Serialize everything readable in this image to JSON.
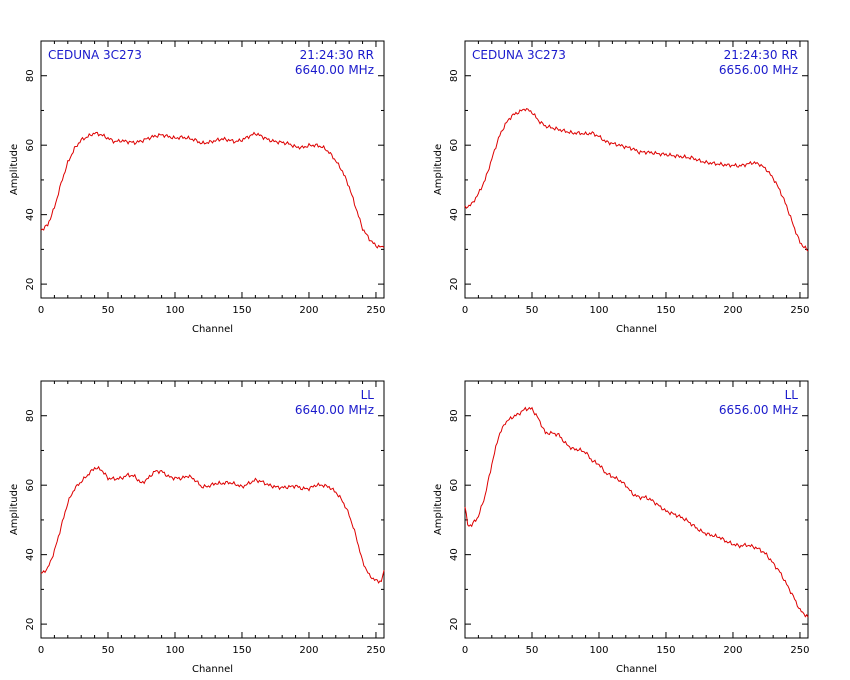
{
  "colors": {
    "trace": "#dd0000",
    "annotation": "#1a1acc",
    "axis": "#000000",
    "background": "#ffffff"
  },
  "chart_data": [
    {
      "type": "line",
      "source": "CEDUNA 3C273",
      "time": "21:24:30",
      "polarization": "RR",
      "frequency": "6640.00 MHz",
      "xlabel": "Channel",
      "ylabel": "Amplitude",
      "xlim": [
        0,
        256
      ],
      "ylim": [
        16,
        90
      ],
      "xticks": [
        0,
        50,
        100,
        150,
        200,
        250
      ],
      "yticks": [
        20,
        40,
        60,
        80
      ],
      "series": [
        {
          "x": [
            0,
            5,
            10,
            15,
            20,
            25,
            30,
            35,
            40,
            45,
            50,
            55,
            60,
            65,
            70,
            75,
            80,
            85,
            90,
            95,
            100,
            105,
            110,
            115,
            120,
            125,
            130,
            135,
            140,
            145,
            150,
            155,
            160,
            165,
            170,
            175,
            180,
            185,
            190,
            195,
            200,
            205,
            210,
            215,
            220,
            225,
            230,
            235,
            240,
            245,
            250,
            256
          ],
          "y": [
            35.5,
            37,
            42,
            49,
            55,
            59,
            61.5,
            62.5,
            63.5,
            63,
            62,
            61,
            61.3,
            61,
            60.7,
            61.2,
            62,
            62.6,
            63,
            62.5,
            62,
            62.3,
            62,
            61.5,
            60.5,
            60.8,
            61.3,
            61.8,
            61.5,
            61,
            61.5,
            62.5,
            63.4,
            62.5,
            61.5,
            61,
            60.8,
            60.4,
            59.5,
            59.3,
            59.9,
            60,
            59.5,
            58,
            55.5,
            52.5,
            48,
            42,
            36,
            33,
            31,
            30.5
          ]
        }
      ]
    },
    {
      "type": "line",
      "source": "CEDUNA 3C273",
      "time": "21:24:30",
      "polarization": "RR",
      "frequency": "6656.00 MHz",
      "xlabel": "Channel",
      "ylabel": "Amplitude",
      "xlim": [
        0,
        256
      ],
      "ylim": [
        16,
        90
      ],
      "xticks": [
        0,
        50,
        100,
        150,
        200,
        250
      ],
      "yticks": [
        20,
        40,
        60,
        80
      ],
      "series": [
        {
          "x": [
            0,
            5,
            10,
            15,
            20,
            25,
            30,
            35,
            40,
            45,
            50,
            55,
            60,
            65,
            70,
            75,
            80,
            85,
            90,
            95,
            100,
            105,
            110,
            115,
            120,
            125,
            130,
            135,
            140,
            145,
            150,
            155,
            160,
            165,
            170,
            175,
            180,
            185,
            190,
            195,
            200,
            205,
            210,
            215,
            220,
            225,
            230,
            235,
            240,
            245,
            250,
            256
          ],
          "y": [
            42,
            43,
            46,
            50,
            56,
            62,
            66,
            68.5,
            69.5,
            70.5,
            69.5,
            67,
            65.5,
            65,
            64.5,
            64,
            63.5,
            63.5,
            63.2,
            63.5,
            62.5,
            61,
            60.5,
            60,
            59.5,
            59,
            58,
            58,
            57.8,
            57.5,
            57.3,
            57,
            56.8,
            56.5,
            56.3,
            55.5,
            55,
            54.8,
            54.5,
            54.3,
            54.2,
            54,
            54.5,
            55,
            54.5,
            53,
            50.5,
            47,
            42.5,
            37,
            32,
            29.5
          ]
        }
      ]
    },
    {
      "type": "line",
      "polarization": "LL",
      "frequency": "6640.00 MHz",
      "xlabel": "Channel",
      "ylabel": "Amplitude",
      "xlim": [
        0,
        256
      ],
      "ylim": [
        16,
        90
      ],
      "xticks": [
        0,
        50,
        100,
        150,
        200,
        250
      ],
      "yticks": [
        20,
        40,
        60,
        80
      ],
      "series": [
        {
          "x": [
            0,
            5,
            10,
            15,
            20,
            25,
            30,
            35,
            40,
            45,
            50,
            55,
            60,
            65,
            70,
            75,
            80,
            85,
            90,
            95,
            100,
            105,
            110,
            115,
            120,
            125,
            130,
            135,
            140,
            145,
            150,
            155,
            160,
            165,
            170,
            175,
            180,
            185,
            190,
            195,
            200,
            205,
            210,
            215,
            220,
            225,
            230,
            235,
            240,
            245,
            250,
            254,
            256
          ],
          "y": [
            34.5,
            36,
            41,
            48,
            55,
            59,
            61,
            63,
            65,
            64.5,
            62,
            61.8,
            62,
            63,
            62.5,
            60.5,
            62,
            64,
            64,
            62.5,
            62,
            62,
            62.7,
            61.5,
            59.5,
            59.7,
            60.5,
            60.5,
            60.8,
            60.3,
            59.5,
            60.5,
            61.5,
            61,
            60,
            59.5,
            59.3,
            59.5,
            59.8,
            59,
            59,
            60,
            60,
            59.5,
            58,
            55.5,
            51.5,
            45.5,
            38,
            34,
            32.5,
            32.3,
            35.5
          ]
        }
      ]
    },
    {
      "type": "line",
      "polarization": "LL",
      "frequency": "6656.00 MHz",
      "xlabel": "Channel",
      "ylabel": "Amplitude",
      "xlim": [
        0,
        256
      ],
      "ylim": [
        16,
        90
      ],
      "xticks": [
        0,
        50,
        100,
        150,
        200,
        250
      ],
      "yticks": [
        20,
        40,
        60,
        80
      ],
      "series": [
        {
          "x": [
            0,
            2,
            5,
            10,
            15,
            20,
            25,
            30,
            35,
            40,
            45,
            50,
            55,
            60,
            65,
            70,
            75,
            80,
            85,
            90,
            95,
            100,
            105,
            110,
            115,
            120,
            125,
            130,
            135,
            140,
            145,
            150,
            155,
            160,
            165,
            170,
            175,
            180,
            185,
            190,
            195,
            200,
            205,
            210,
            215,
            220,
            225,
            230,
            235,
            240,
            245,
            250,
            256
          ],
          "y": [
            54,
            48.5,
            48.5,
            51,
            57,
            66,
            74,
            78,
            79.5,
            80.5,
            82,
            82,
            79,
            75,
            75,
            74.5,
            72,
            70.5,
            70.2,
            69.5,
            67,
            66,
            63.5,
            62.5,
            61.5,
            60,
            57.5,
            56.5,
            56.5,
            55.5,
            54,
            52.5,
            51.8,
            51,
            50,
            48.5,
            47,
            46,
            45.5,
            45,
            43.8,
            43,
            42.5,
            42.8,
            42.3,
            41.5,
            40,
            37.5,
            35,
            31.5,
            28,
            24,
            22
          ]
        }
      ]
    }
  ]
}
